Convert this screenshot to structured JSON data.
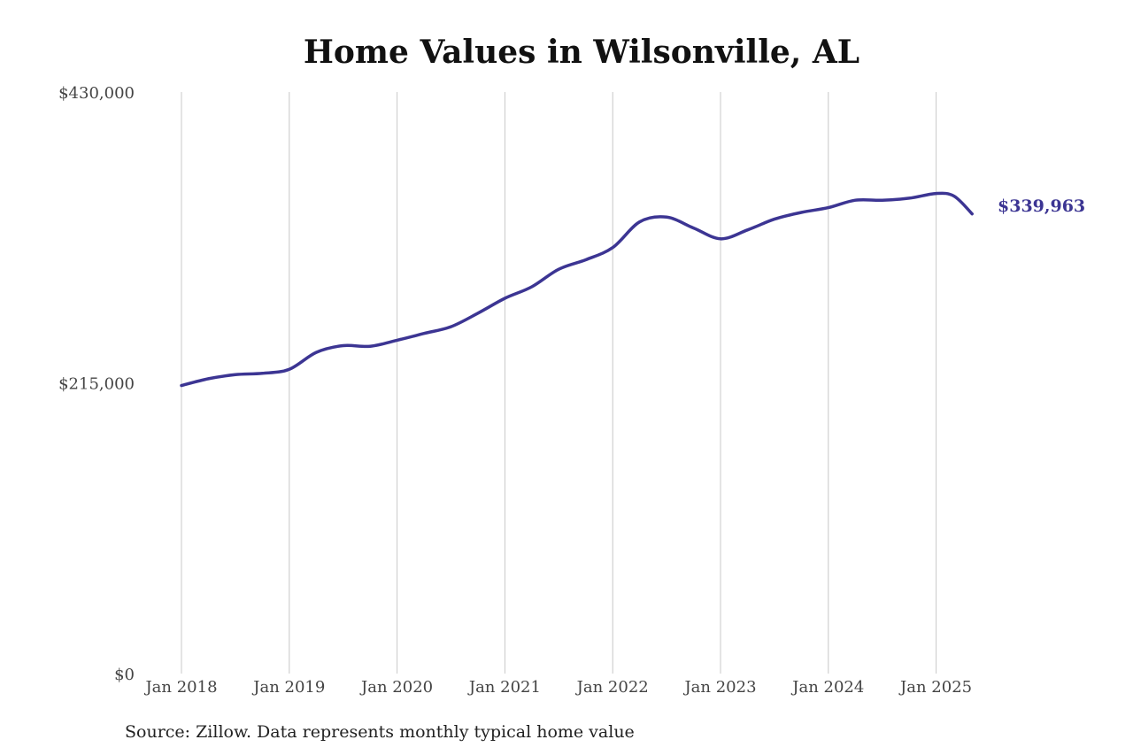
{
  "title": "Home Values in Wilsonville, AL",
  "source": "Source: Zillow. Data represents monthly typical home value",
  "colors": {
    "line": "#3c3593",
    "grid": "#c8c8c8",
    "background": "#ffffff"
  },
  "chart_data": {
    "type": "line",
    "title": "Home Values in Wilsonville, AL",
    "xlabel": "",
    "ylabel": "",
    "ylim": [
      0,
      430000
    ],
    "xlim": [
      "2018-01",
      "2025-05"
    ],
    "grid": "vertical",
    "legend": "none",
    "y_ticks": [
      {
        "value": 0,
        "label": "$0"
      },
      {
        "value": 215000,
        "label": "$215,000"
      },
      {
        "value": 430000,
        "label": "$430,000"
      }
    ],
    "x_ticks": [
      {
        "value": "2018-01",
        "label": "Jan 2018"
      },
      {
        "value": "2019-01",
        "label": "Jan 2019"
      },
      {
        "value": "2020-01",
        "label": "Jan 2020"
      },
      {
        "value": "2021-01",
        "label": "Jan 2021"
      },
      {
        "value": "2022-01",
        "label": "Jan 2022"
      },
      {
        "value": "2023-01",
        "label": "Jan 2023"
      },
      {
        "value": "2024-01",
        "label": "Jan 2024"
      },
      {
        "value": "2025-01",
        "label": "Jan 2025"
      }
    ],
    "end_label": "$339,963",
    "series": [
      {
        "x": [
          "2018-01",
          "2018-04",
          "2018-07",
          "2018-10",
          "2019-01",
          "2019-04",
          "2019-07",
          "2019-10",
          "2020-01",
          "2020-04",
          "2020-07",
          "2020-10",
          "2021-01",
          "2021-04",
          "2021-07",
          "2021-10",
          "2022-01",
          "2022-04",
          "2022-07",
          "2022-10",
          "2023-01",
          "2023-04",
          "2023-07",
          "2023-10",
          "2024-01",
          "2024-04",
          "2024-07",
          "2024-10",
          "2025-01",
          "2025-03",
          "2025-05"
        ],
        "values": [
          213000,
          218000,
          221000,
          222000,
          225000,
          237500,
          242500,
          242000,
          246500,
          251500,
          256500,
          266500,
          277500,
          286000,
          299000,
          306000,
          315000,
          334000,
          337500,
          329500,
          321500,
          328000,
          336000,
          341000,
          344500,
          350000,
          350000,
          351500,
          355000,
          353000,
          339963
        ]
      }
    ]
  }
}
